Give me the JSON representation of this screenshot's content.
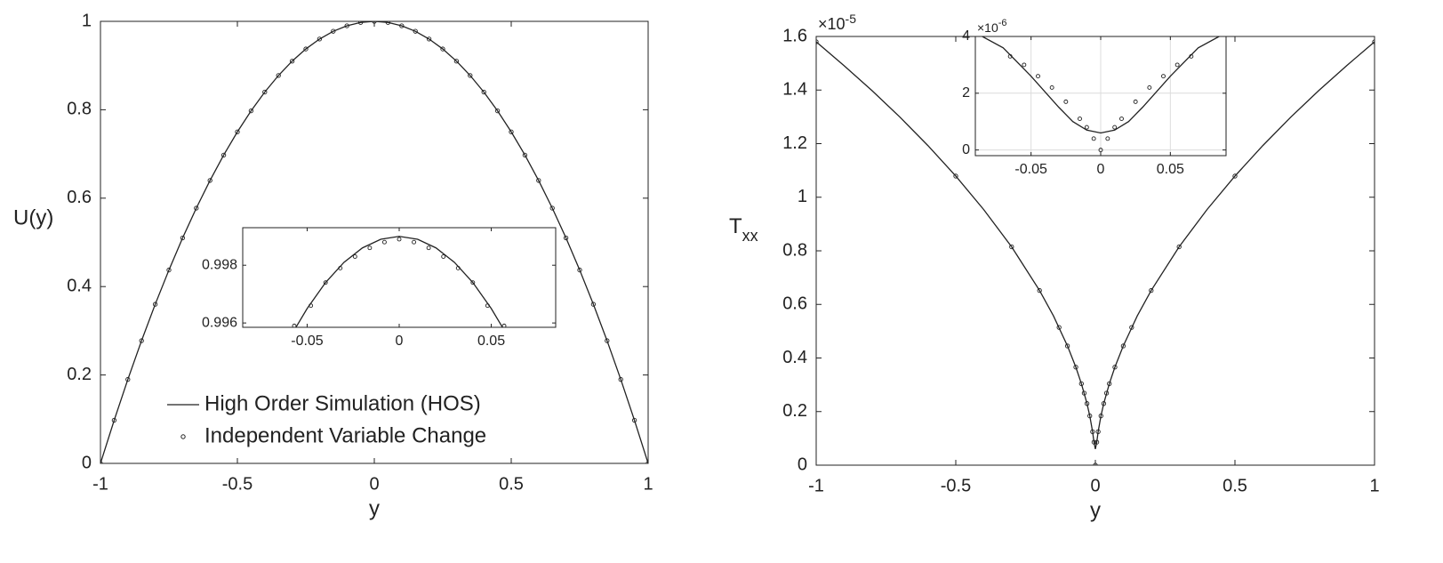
{
  "chart_data": [
    {
      "type": "line",
      "xlabel": "y",
      "ylabel": "U(y)",
      "xlim": [
        -1,
        1
      ],
      "ylim": [
        0,
        1
      ],
      "xticks": [
        -1,
        -0.5,
        0,
        0.5,
        1
      ],
      "yticks": [
        0,
        0.2,
        0.4,
        0.6,
        0.8,
        1
      ],
      "grid": false,
      "legend": "lower center",
      "series": [
        {
          "name": "High Order Simulation (HOS)",
          "style": "line",
          "color": "#222222",
          "x": [
            -1,
            -0.95,
            -0.9,
            -0.85,
            -0.8,
            -0.75,
            -0.7,
            -0.65,
            -0.6,
            -0.55,
            -0.5,
            -0.45,
            -0.4,
            -0.35,
            -0.3,
            -0.25,
            -0.2,
            -0.15,
            -0.1,
            -0.05,
            0,
            0.05,
            0.1,
            0.15,
            0.2,
            0.25,
            0.3,
            0.35,
            0.4,
            0.45,
            0.5,
            0.55,
            0.6,
            0.65,
            0.7,
            0.75,
            0.8,
            0.85,
            0.9,
            0.95,
            1
          ],
          "values": [
            0,
            0.0975,
            0.19,
            0.2775,
            0.36,
            0.4375,
            0.51,
            0.5775,
            0.64,
            0.6975,
            0.75,
            0.7975,
            0.84,
            0.8775,
            0.91,
            0.9375,
            0.96,
            0.9775,
            0.99,
            0.9975,
            1,
            0.9975,
            0.99,
            0.9775,
            0.96,
            0.9375,
            0.91,
            0.8775,
            0.84,
            0.7975,
            0.75,
            0.6975,
            0.64,
            0.5775,
            0.51,
            0.4375,
            0.36,
            0.2775,
            0.19,
            0.0975,
            0
          ]
        },
        {
          "name": "Independent Variable Change",
          "style": "marker",
          "color": "#222222",
          "x": [
            -1,
            -0.95,
            -0.9,
            -0.85,
            -0.8,
            -0.75,
            -0.7,
            -0.65,
            -0.6,
            -0.55,
            -0.5,
            -0.45,
            -0.4,
            -0.35,
            -0.3,
            -0.25,
            -0.2,
            -0.15,
            -0.1,
            -0.05,
            0,
            0.05,
            0.1,
            0.15,
            0.2,
            0.25,
            0.3,
            0.35,
            0.4,
            0.45,
            0.5,
            0.55,
            0.6,
            0.65,
            0.7,
            0.75,
            0.8,
            0.85,
            0.9,
            0.95,
            1
          ],
          "values": [
            0,
            0.0975,
            0.19,
            0.2775,
            0.36,
            0.4375,
            0.51,
            0.5775,
            0.64,
            0.6975,
            0.75,
            0.7975,
            0.84,
            0.8775,
            0.91,
            0.9375,
            0.96,
            0.9775,
            0.99,
            0.9975,
            1,
            0.9975,
            0.99,
            0.9775,
            0.96,
            0.9375,
            0.91,
            0.8775,
            0.84,
            0.7975,
            0.75,
            0.6975,
            0.64,
            0.5775,
            0.51,
            0.4375,
            0.36,
            0.2775,
            0.19,
            0.0975,
            0
          ]
        }
      ]
    },
    {
      "type": "line",
      "xlim": [
        -0.085,
        0.085
      ],
      "ylim": [
        0.99585,
        0.9993
      ],
      "xticks": [
        -0.05,
        0,
        0.05
      ],
      "yticks": [
        0.996,
        0.998
      ],
      "grid": false,
      "series": [
        {
          "style": "line",
          "color": "#222222",
          "x": [
            -0.056,
            -0.05,
            -0.04,
            -0.03,
            -0.02,
            -0.01,
            0,
            0.01,
            0.02,
            0.03,
            0.04,
            0.05,
            0.056
          ],
          "values": [
            0.99586,
            0.9965,
            0.9974,
            0.9981,
            0.9986,
            0.9989,
            0.999,
            0.9989,
            0.9986,
            0.9981,
            0.9974,
            0.9965,
            0.99586
          ]
        },
        {
          "style": "marker",
          "color": "#222222",
          "x": [
            -0.057,
            -0.048,
            -0.04,
            -0.032,
            -0.024,
            -0.016,
            -0.008,
            0,
            0.008,
            0.016,
            0.024,
            0.032,
            0.04,
            0.048,
            0.057
          ],
          "values": [
            0.9959,
            0.9966,
            0.9974,
            0.9979,
            0.9983,
            0.9986,
            0.9988,
            0.9989,
            0.9988,
            0.9986,
            0.9983,
            0.9979,
            0.9974,
            0.9966,
            0.9959
          ]
        }
      ]
    },
    {
      "type": "line",
      "xlabel": "y",
      "ylabel": "T",
      "ylabel_subscript": "xx",
      "y_exponent_base": "×10",
      "y_exponent_power": "-5",
      "xlim": [
        -1,
        1
      ],
      "ylim": [
        0,
        1.6
      ],
      "xticks": [
        -1,
        -0.5,
        0,
        0.5,
        1
      ],
      "yticks": [
        0,
        0.2,
        0.4,
        0.6,
        0.8,
        1,
        1.2,
        1.4,
        1.6
      ],
      "grid": false,
      "series": [
        {
          "style": "line",
          "color": "#222222",
          "x": [
            -1,
            -0.9,
            -0.8,
            -0.7,
            -0.6,
            -0.5,
            -0.4,
            -0.3,
            -0.2,
            -0.15,
            -0.1,
            -0.07,
            -0.05,
            -0.03,
            -0.02,
            -0.01,
            -0.005,
            0,
            0.005,
            0.01,
            0.02,
            0.03,
            0.05,
            0.07,
            0.1,
            0.15,
            0.2,
            0.3,
            0.4,
            0.5,
            0.6,
            0.7,
            0.8,
            0.9,
            1
          ],
          "values": [
            1.58,
            1.491,
            1.398,
            1.299,
            1.193,
            1.079,
            0.954,
            0.815,
            0.652,
            0.557,
            0.445,
            0.366,
            0.304,
            0.23,
            0.184,
            0.125,
            0.086,
            0.06,
            0.086,
            0.125,
            0.184,
            0.23,
            0.304,
            0.366,
            0.445,
            0.557,
            0.652,
            0.815,
            0.954,
            1.079,
            1.193,
            1.299,
            1.398,
            1.491,
            1.58
          ]
        },
        {
          "style": "marker",
          "color": "#222222",
          "x": [
            -1,
            -0.5,
            -0.3,
            -0.2,
            -0.13,
            -0.1,
            -0.07,
            -0.05,
            -0.04,
            -0.03,
            -0.02,
            -0.01,
            -0.005,
            0,
            0.005,
            0.01,
            0.02,
            0.03,
            0.04,
            0.05,
            0.07,
            0.1,
            0.13,
            0.2,
            0.3,
            0.5,
            1
          ],
          "values": [
            1.58,
            1.079,
            0.815,
            0.652,
            0.514,
            0.445,
            0.366,
            0.304,
            0.269,
            0.23,
            0.184,
            0.125,
            0.086,
            0,
            0.086,
            0.125,
            0.184,
            0.23,
            0.269,
            0.304,
            0.366,
            0.445,
            0.514,
            0.652,
            0.815,
            1.079,
            1.58
          ]
        }
      ]
    },
    {
      "type": "line",
      "y_exponent_base": "×10",
      "y_exponent_power": "-6",
      "xlim": [
        -0.09,
        0.09
      ],
      "ylim": [
        -0.2,
        4
      ],
      "xticks": [
        -0.05,
        0,
        0.05
      ],
      "yticks": [
        0,
        2,
        4
      ],
      "grid": true,
      "series": [
        {
          "style": "line",
          "color": "#222222",
          "x": [
            -0.085,
            -0.07,
            -0.05,
            -0.03,
            -0.02,
            -0.01,
            0,
            0.01,
            0.02,
            0.03,
            0.05,
            0.07,
            0.085
          ],
          "values": [
            4,
            3.6,
            2.6,
            1.5,
            1,
            0.7,
            0.6,
            0.7,
            1,
            1.5,
            2.6,
            3.6,
            4
          ]
        },
        {
          "style": "marker",
          "color": "#222222",
          "x": [
            -0.065,
            -0.055,
            -0.045,
            -0.035,
            -0.025,
            -0.015,
            -0.01,
            -0.005,
            0,
            0.005,
            0.01,
            0.015,
            0.025,
            0.035,
            0.045,
            0.055,
            0.065
          ],
          "values": [
            3.3,
            3,
            2.6,
            2.2,
            1.7,
            1.1,
            0.8,
            0.4,
            0,
            0.4,
            0.8,
            1.1,
            1.7,
            2.2,
            2.6,
            3,
            3.3
          ]
        }
      ]
    }
  ]
}
